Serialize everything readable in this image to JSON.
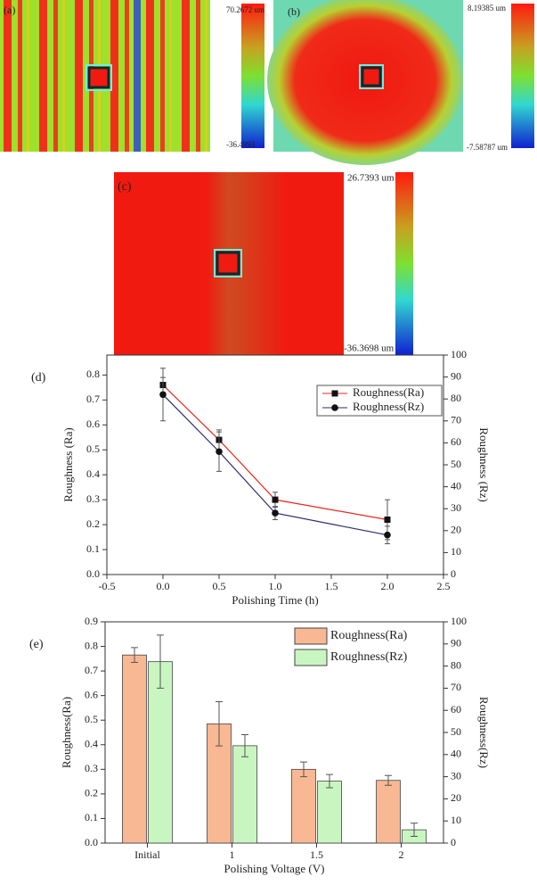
{
  "panels": [
    {
      "label": "(a)",
      "max_label": "70.2672 um",
      "min_label": "-36.4993"
    },
    {
      "label": "(b)",
      "max_label": "8.19385 um",
      "min_label": "-7.58787 um"
    },
    {
      "label": "(c)",
      "max_label": "26.7393 um",
      "min_label": "-36.3698 um"
    }
  ],
  "chart_data": [
    {
      "type": "line",
      "label": "(d)",
      "x_label": "Polishing Time (h)",
      "y_label": "Roughness (Ra)",
      "y2_label": "Roughness (Rz)",
      "x": [
        0,
        0.5,
        1,
        2
      ],
      "xlim": [
        -0.5,
        2.5
      ],
      "xticks": [
        -0.5,
        {
          "value": 0,
          "label": "0.0"
        },
        0.5,
        {
          "value": 1,
          "label": "1.0"
        },
        1.5,
        {
          "value": 2,
          "label": "2.0"
        },
        2.5
      ],
      "ylim": [
        0,
        0.88
      ],
      "yticks": [
        {
          "value": 0,
          "label": "0.0"
        },
        0.1,
        0.2,
        0.3,
        0.4,
        0.5,
        0.6,
        0.7,
        0.8
      ],
      "y2lim": [
        0,
        100
      ],
      "y2ticks": [
        0,
        10,
        20,
        30,
        40,
        50,
        60,
        70,
        80,
        90,
        100
      ],
      "series": [
        {
          "name": "Roughness(Ra)",
          "color": "#e8281e",
          "marker": "square",
          "values": [
            0.76,
            0.54,
            0.3,
            0.22
          ],
          "errors": [
            0.03,
            0.04,
            0.03,
            0.08
          ]
        },
        {
          "name": "Roughness(Rz)",
          "color": "#2b2b6b",
          "marker": "circle",
          "axis": "y2",
          "values": [
            82,
            56,
            28,
            18
          ],
          "errors": [
            12,
            9,
            3,
            4
          ]
        }
      ]
    },
    {
      "type": "bar",
      "label": "(e)",
      "x_label": "Polishing Voltage (V)",
      "y_label": "Roughness(Ra)",
      "y2_label": "Roughness(Rz)",
      "categories": [
        "Initial",
        "1",
        "1.5",
        "2"
      ],
      "ylim": [
        0,
        0.9
      ],
      "yticks": [
        {
          "value": 0,
          "label": "0.0"
        },
        0.1,
        0.2,
        0.3,
        0.4,
        0.5,
        0.6,
        0.7,
        0.8,
        0.9
      ],
      "y2lim": [
        0,
        100
      ],
      "y2ticks": [
        0,
        10,
        20,
        30,
        40,
        50,
        60,
        70,
        80,
        90,
        100
      ],
      "series": [
        {
          "name": "Roughness(Ra)",
          "color": "#f8b894",
          "values": [
            0.765,
            0.485,
            0.3,
            0.255
          ],
          "errors": [
            0.03,
            0.09,
            0.03,
            0.02
          ]
        },
        {
          "name": "Roughness(Rz)",
          "color": "#c9f5c1",
          "axis": "y2",
          "values": [
            82,
            44,
            28,
            6
          ],
          "errors": [
            12,
            5,
            3,
            3
          ]
        }
      ]
    }
  ]
}
